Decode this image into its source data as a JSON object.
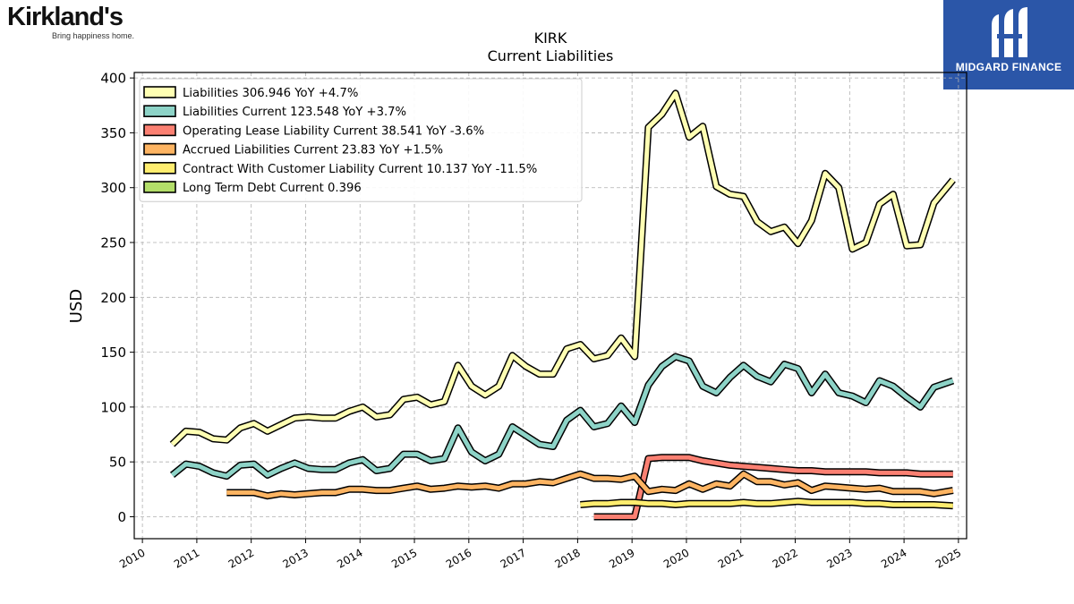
{
  "brand": {
    "left_logo_text": "Kirkland's",
    "left_tagline": "Bring happiness home.",
    "right_logo_text": "MIDGARD FINANCE"
  },
  "colors": {
    "liabilities": "#ffffb3",
    "liabilities_current": "#8dd3c7",
    "operating_lease": "#fb8072",
    "accrued": "#fdb462",
    "contract_customer": "#ffed6f",
    "long_term_debt": "#b3de69",
    "outline": "#000000",
    "grid": "#b0b0b0",
    "brand_right_bg": "#2b56a8"
  },
  "chart_data": {
    "type": "line",
    "title": "KIRK",
    "subtitle": "Current  Liabilities",
    "ylabel": "USD",
    "xlabel": "",
    "ylim": [
      -20,
      405
    ],
    "xlim": [
      2009.85,
      2025.15
    ],
    "yticks": [
      0,
      50,
      100,
      150,
      200,
      250,
      300,
      350,
      400
    ],
    "xticks": [
      "2010",
      "2011",
      "2012",
      "2013",
      "2014",
      "2015",
      "2016",
      "2017",
      "2018",
      "2019",
      "2020",
      "2021",
      "2022",
      "2023",
      "2024",
      "2025"
    ],
    "grid": true,
    "legend_position": "top-left",
    "series": [
      {
        "name": "Liabilities",
        "legend": "Liabilities  306.946 YoY +4.7%",
        "color_key": "liabilities",
        "points": [
          [
            2010.55,
            66
          ],
          [
            2010.8,
            78
          ],
          [
            2011.05,
            77
          ],
          [
            2011.3,
            71
          ],
          [
            2011.55,
            70
          ],
          [
            2011.8,
            81
          ],
          [
            2012.05,
            85
          ],
          [
            2012.3,
            78
          ],
          [
            2012.55,
            84
          ],
          [
            2012.8,
            90
          ],
          [
            2013.05,
            91
          ],
          [
            2013.3,
            90
          ],
          [
            2013.55,
            90
          ],
          [
            2013.8,
            96
          ],
          [
            2014.05,
            100
          ],
          [
            2014.3,
            91
          ],
          [
            2014.55,
            93
          ],
          [
            2014.8,
            107
          ],
          [
            2015.05,
            109
          ],
          [
            2015.3,
            102
          ],
          [
            2015.55,
            105
          ],
          [
            2015.8,
            138
          ],
          [
            2016.05,
            119
          ],
          [
            2016.3,
            111
          ],
          [
            2016.55,
            119
          ],
          [
            2016.8,
            147
          ],
          [
            2017.05,
            137
          ],
          [
            2017.3,
            130
          ],
          [
            2017.55,
            130
          ],
          [
            2017.8,
            153
          ],
          [
            2018.05,
            157
          ],
          [
            2018.3,
            144
          ],
          [
            2018.55,
            147
          ],
          [
            2018.8,
            163
          ],
          [
            2019.05,
            146
          ],
          [
            2019.3,
            355
          ],
          [
            2019.55,
            367
          ],
          [
            2019.8,
            386
          ],
          [
            2020.05,
            346
          ],
          [
            2020.3,
            356
          ],
          [
            2020.55,
            301
          ],
          [
            2020.8,
            294
          ],
          [
            2021.05,
            292
          ],
          [
            2021.3,
            269
          ],
          [
            2021.55,
            260
          ],
          [
            2021.8,
            264
          ],
          [
            2022.05,
            249
          ],
          [
            2022.3,
            270
          ],
          [
            2022.55,
            313
          ],
          [
            2022.8,
            300
          ],
          [
            2023.05,
            244
          ],
          [
            2023.3,
            250
          ],
          [
            2023.55,
            285
          ],
          [
            2023.8,
            294
          ],
          [
            2024.05,
            247
          ],
          [
            2024.3,
            248
          ],
          [
            2024.55,
            286
          ],
          [
            2024.9,
            307
          ]
        ]
      },
      {
        "name": "Liabilities Current",
        "legend": "Liabilities Current  123.548 YoY +3.7%",
        "color_key": "liabilities_current",
        "points": [
          [
            2010.55,
            38
          ],
          [
            2010.8,
            48
          ],
          [
            2011.05,
            46
          ],
          [
            2011.3,
            40
          ],
          [
            2011.55,
            37
          ],
          [
            2011.8,
            47
          ],
          [
            2012.05,
            48
          ],
          [
            2012.3,
            38
          ],
          [
            2012.55,
            44
          ],
          [
            2012.8,
            49
          ],
          [
            2013.05,
            44
          ],
          [
            2013.3,
            43
          ],
          [
            2013.55,
            43
          ],
          [
            2013.8,
            49
          ],
          [
            2014.05,
            52
          ],
          [
            2014.3,
            42
          ],
          [
            2014.55,
            44
          ],
          [
            2014.8,
            57
          ],
          [
            2015.05,
            57
          ],
          [
            2015.3,
            51
          ],
          [
            2015.55,
            53
          ],
          [
            2015.8,
            81
          ],
          [
            2016.05,
            59
          ],
          [
            2016.3,
            51
          ],
          [
            2016.55,
            57
          ],
          [
            2016.8,
            82
          ],
          [
            2017.05,
            74
          ],
          [
            2017.3,
            66
          ],
          [
            2017.55,
            64
          ],
          [
            2017.8,
            88
          ],
          [
            2018.05,
            97
          ],
          [
            2018.3,
            82
          ],
          [
            2018.55,
            85
          ],
          [
            2018.8,
            101
          ],
          [
            2019.05,
            86
          ],
          [
            2019.3,
            120
          ],
          [
            2019.55,
            137
          ],
          [
            2019.8,
            146
          ],
          [
            2020.05,
            142
          ],
          [
            2020.3,
            119
          ],
          [
            2020.55,
            113
          ],
          [
            2020.8,
            127
          ],
          [
            2021.05,
            138
          ],
          [
            2021.3,
            128
          ],
          [
            2021.55,
            123
          ],
          [
            2021.8,
            139
          ],
          [
            2022.05,
            135
          ],
          [
            2022.3,
            113
          ],
          [
            2022.55,
            130
          ],
          [
            2022.8,
            113
          ],
          [
            2023.05,
            110
          ],
          [
            2023.3,
            104
          ],
          [
            2023.55,
            124
          ],
          [
            2023.8,
            119
          ],
          [
            2024.05,
            109
          ],
          [
            2024.3,
            100
          ],
          [
            2024.55,
            118
          ],
          [
            2024.9,
            124
          ]
        ]
      },
      {
        "name": "Operating Lease Liability Current",
        "legend": "Operating Lease Liability Current  38.541 YoY -3.6%",
        "color_key": "operating_lease",
        "points": [
          [
            2018.3,
            0
          ],
          [
            2018.55,
            0
          ],
          [
            2018.8,
            0
          ],
          [
            2019.05,
            0
          ],
          [
            2019.3,
            53
          ],
          [
            2019.55,
            54
          ],
          [
            2019.8,
            54
          ],
          [
            2020.05,
            54
          ],
          [
            2020.3,
            51
          ],
          [
            2020.55,
            49
          ],
          [
            2020.8,
            47
          ],
          [
            2021.05,
            46
          ],
          [
            2021.3,
            45
          ],
          [
            2021.55,
            44
          ],
          [
            2021.8,
            43
          ],
          [
            2022.05,
            42
          ],
          [
            2022.3,
            42
          ],
          [
            2022.55,
            41
          ],
          [
            2022.8,
            41
          ],
          [
            2023.05,
            41
          ],
          [
            2023.3,
            41
          ],
          [
            2023.55,
            40
          ],
          [
            2023.8,
            40
          ],
          [
            2024.05,
            40
          ],
          [
            2024.3,
            39
          ],
          [
            2024.55,
            39
          ],
          [
            2024.9,
            39
          ]
        ]
      },
      {
        "name": "Accrued Liabilities Current",
        "legend": "Accrued Liabilities Current  23.83 YoY +1.5%",
        "color_key": "accrued",
        "points": [
          [
            2011.55,
            22
          ],
          [
            2011.8,
            22
          ],
          [
            2012.05,
            22
          ],
          [
            2012.3,
            19
          ],
          [
            2012.55,
            21
          ],
          [
            2012.8,
            20
          ],
          [
            2013.05,
            21
          ],
          [
            2013.3,
            22
          ],
          [
            2013.55,
            22
          ],
          [
            2013.8,
            25
          ],
          [
            2014.05,
            25
          ],
          [
            2014.3,
            24
          ],
          [
            2014.55,
            24
          ],
          [
            2014.8,
            26
          ],
          [
            2015.05,
            28
          ],
          [
            2015.3,
            25
          ],
          [
            2015.55,
            26
          ],
          [
            2015.8,
            28
          ],
          [
            2016.05,
            27
          ],
          [
            2016.3,
            28
          ],
          [
            2016.55,
            26
          ],
          [
            2016.8,
            30
          ],
          [
            2017.05,
            30
          ],
          [
            2017.3,
            32
          ],
          [
            2017.55,
            31
          ],
          [
            2017.8,
            35
          ],
          [
            2018.05,
            39
          ],
          [
            2018.3,
            35
          ],
          [
            2018.55,
            35
          ],
          [
            2018.8,
            34
          ],
          [
            2019.05,
            37
          ],
          [
            2019.3,
            23
          ],
          [
            2019.55,
            25
          ],
          [
            2019.8,
            24
          ],
          [
            2020.05,
            30
          ],
          [
            2020.3,
            25
          ],
          [
            2020.55,
            30
          ],
          [
            2020.8,
            28
          ],
          [
            2021.05,
            39
          ],
          [
            2021.3,
            32
          ],
          [
            2021.55,
            32
          ],
          [
            2021.8,
            29
          ],
          [
            2022.05,
            31
          ],
          [
            2022.3,
            24
          ],
          [
            2022.55,
            28
          ],
          [
            2022.8,
            27
          ],
          [
            2023.05,
            26
          ],
          [
            2023.3,
            25
          ],
          [
            2023.55,
            26
          ],
          [
            2023.8,
            23
          ],
          [
            2024.05,
            23
          ],
          [
            2024.3,
            23
          ],
          [
            2024.55,
            21
          ],
          [
            2024.9,
            24
          ]
        ]
      },
      {
        "name": "Contract With Customer Liability Current",
        "legend": "Contract With Customer Liability Current  10.137 YoY -11.5%",
        "color_key": "contract_customer",
        "points": [
          [
            2018.05,
            11
          ],
          [
            2018.3,
            12
          ],
          [
            2018.55,
            12
          ],
          [
            2018.8,
            13
          ],
          [
            2019.05,
            13
          ],
          [
            2019.3,
            12
          ],
          [
            2019.55,
            12
          ],
          [
            2019.8,
            11
          ],
          [
            2020.05,
            12
          ],
          [
            2020.3,
            12
          ],
          [
            2020.55,
            12
          ],
          [
            2020.8,
            12
          ],
          [
            2021.05,
            13
          ],
          [
            2021.3,
            12
          ],
          [
            2021.55,
            12
          ],
          [
            2021.8,
            13
          ],
          [
            2022.05,
            14
          ],
          [
            2022.3,
            13
          ],
          [
            2022.55,
            13
          ],
          [
            2022.8,
            13
          ],
          [
            2023.05,
            13
          ],
          [
            2023.3,
            12
          ],
          [
            2023.55,
            12
          ],
          [
            2023.8,
            11
          ],
          [
            2024.05,
            11
          ],
          [
            2024.3,
            11
          ],
          [
            2024.55,
            11
          ],
          [
            2024.9,
            10
          ]
        ]
      },
      {
        "name": "Long Term Debt Current",
        "legend": "Long Term Debt Current  0.396",
        "color_key": "long_term_debt",
        "points": []
      }
    ]
  }
}
